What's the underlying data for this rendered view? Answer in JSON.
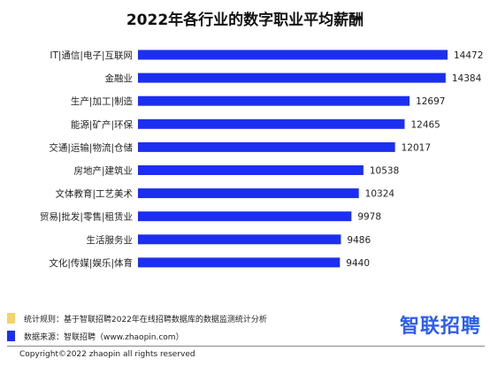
{
  "chart_data": {
    "type": "bar",
    "orientation": "horizontal",
    "title": "2022年各行业的数字职业平均薪酬",
    "categories": [
      "IT|通信|电子|互联网",
      "金融业",
      "生产|加工|制造",
      "能源|矿产|环保",
      "交通|运输|物流|仓储",
      "房地产|建筑业",
      "文体教育|工艺美术",
      "贸易|批发|零售|租赁业",
      "生活服务业",
      "文化|传媒|娱乐|体育"
    ],
    "values": [
      14472,
      14384,
      12697,
      12465,
      12017,
      10538,
      10324,
      9978,
      9486,
      9440
    ],
    "xlim": [
      0,
      14472
    ],
    "bar_color": "#1c2ff0",
    "grid": false,
    "legend": "none"
  },
  "notes": [
    {
      "text": "统计规则：基于智联招聘2022年在线招聘数据库的数据监测统计分析",
      "color": "#f5d26a"
    },
    {
      "text": "数据来源：智联招聘（www.zhaopin.com）",
      "color": "#1c2ff0"
    }
  ],
  "logo_text": "智联招聘",
  "copyright": "Copyright©2022 zhaopin all rights reserved"
}
